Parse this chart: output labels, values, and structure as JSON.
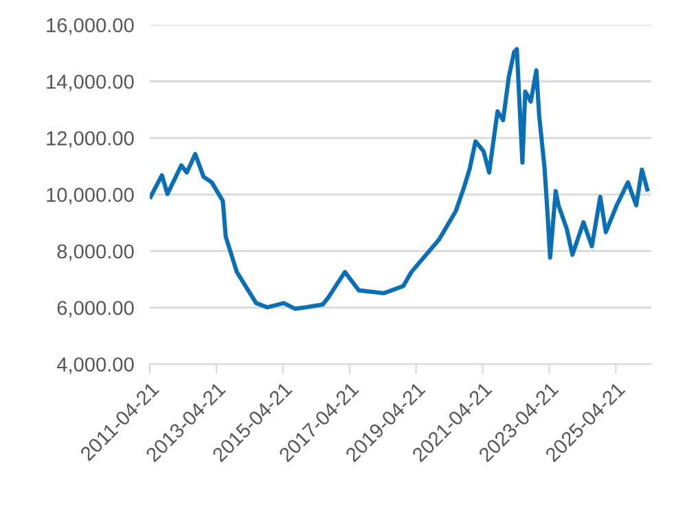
{
  "chart_data": {
    "type": "line",
    "x": [
      "2011-05",
      "2011-09",
      "2011-11",
      "2012-04",
      "2012-06",
      "2012-09",
      "2012-12",
      "2013-03",
      "2013-07",
      "2013-08",
      "2013-12",
      "2014-07",
      "2014-11",
      "2015-05",
      "2015-09",
      "2016-01",
      "2016-07",
      "2016-09",
      "2017-03",
      "2017-08",
      "2018-05",
      "2018-12",
      "2019-03",
      "2020-01",
      "2020-07",
      "2020-10",
      "2020-12",
      "2021-02",
      "2021-05",
      "2021-07",
      "2021-10",
      "2021-12",
      "2022-02",
      "2022-04",
      "2022-05",
      "2022-07",
      "2022-08",
      "2022-10",
      "2022-12",
      "2023-01",
      "2023-03",
      "2023-04",
      "2023-05",
      "2023-07",
      "2023-08",
      "2023-11",
      "2024-01",
      "2024-05",
      "2024-08",
      "2024-11",
      "2025-01",
      "2025-05",
      "2025-09",
      "2025-12",
      "2026-02",
      "2026-04"
    ],
    "series": [
      {
        "color": "#0a6fb4",
        "values": [
          9920,
          10680,
          10020,
          11030,
          10780,
          11430,
          10630,
          10430,
          9770,
          8520,
          7260,
          6160,
          6010,
          6160,
          5960,
          6010,
          6110,
          6360,
          7260,
          6610,
          6510,
          6760,
          7260,
          8420,
          9420,
          10280,
          10930,
          11880,
          11530,
          10780,
          12940,
          12630,
          14140,
          15040,
          15140,
          11130,
          13640,
          13290,
          14390,
          12790,
          10930,
          9420,
          7770,
          10120,
          9620,
          8770,
          7870,
          9020,
          8170,
          9920,
          8670,
          9620,
          10430,
          9620,
          10880,
          10180
        ]
      }
    ],
    "xlim": [
      "2011-04-21",
      "2026-05-15"
    ],
    "xticks": [
      {
        "value": "2011-04-21",
        "label": "2011-04-21"
      },
      {
        "value": "2013-04-21",
        "label": "2013-04-21"
      },
      {
        "value": "2015-04-21",
        "label": "2015-04-21"
      },
      {
        "value": "2017-04-21",
        "label": "2017-04-21"
      },
      {
        "value": "2019-04-21",
        "label": "2019-04-21"
      },
      {
        "value": "2021-04-21",
        "label": "2021-04-21"
      },
      {
        "value": "2023-04-21",
        "label": "2023-04-21"
      },
      {
        "value": "2025-04-21",
        "label": "2025-04-21"
      }
    ],
    "ylim": [
      4000,
      16000
    ],
    "yticks": [
      {
        "value": 4000,
        "label": "4,000.00"
      },
      {
        "value": 6000,
        "label": "6,000.00"
      },
      {
        "value": 8000,
        "label": "8,000.00"
      },
      {
        "value": 10000,
        "label": "10,000.00"
      },
      {
        "value": 12000,
        "label": "12,000.00"
      },
      {
        "value": 14000,
        "label": "14,000.00"
      },
      {
        "value": 16000,
        "label": "16,000.00"
      }
    ],
    "grid": "y",
    "legend": false,
    "marker": "none",
    "line_style": "solid"
  }
}
